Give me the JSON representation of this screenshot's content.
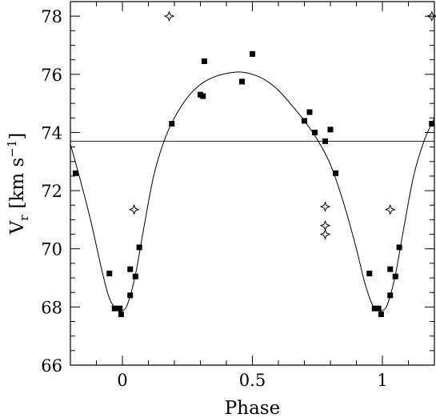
{
  "chart_data": {
    "type": "scatter",
    "xlabel": "Phase",
    "ylabel": {
      "base": "V",
      "sub": "r",
      "unit": "[km s",
      "sup": "−1",
      "close": "]"
    },
    "xlim": [
      -0.2,
      1.2
    ],
    "ylim": [
      66,
      78.5
    ],
    "xticks": [
      0,
      0.5,
      1
    ],
    "xtick_labels": [
      "0",
      "0.5",
      "1"
    ],
    "yticks": [
      66,
      68,
      70,
      72,
      74,
      76,
      78
    ],
    "ytick_labels": [
      "66",
      "68",
      "70",
      "72",
      "74",
      "76",
      "78"
    ],
    "grid": false,
    "reference_line_y": 73.7,
    "series": [
      {
        "marker": "filled-square",
        "points": [
          [
            -0.18,
            72.6
          ],
          [
            -0.05,
            69.15
          ],
          [
            -0.03,
            67.95
          ],
          [
            -0.01,
            67.95
          ],
          [
            -0.005,
            67.75
          ],
          [
            0.03,
            68.4
          ],
          [
            0.03,
            69.3
          ],
          [
            0.05,
            69.05
          ],
          [
            0.065,
            70.05
          ],
          [
            0.19,
            74.3
          ],
          [
            0.3,
            75.3
          ],
          [
            0.31,
            75.25
          ],
          [
            0.315,
            76.45
          ],
          [
            0.46,
            75.75
          ],
          [
            0.5,
            76.7
          ],
          [
            0.7,
            74.4
          ],
          [
            0.72,
            74.7
          ],
          [
            0.74,
            74.0
          ],
          [
            0.78,
            73.7
          ],
          [
            0.8,
            74.1
          ],
          [
            0.82,
            72.6
          ],
          [
            0.95,
            69.15
          ],
          [
            0.97,
            67.95
          ],
          [
            0.985,
            67.95
          ],
          [
            0.995,
            67.75
          ],
          [
            1.03,
            68.4
          ],
          [
            1.03,
            69.3
          ],
          [
            1.05,
            69.05
          ],
          [
            1.065,
            70.05
          ],
          [
            1.19,
            74.3
          ]
        ]
      },
      {
        "marker": "open-star",
        "points": [
          [
            0.18,
            78.0
          ],
          [
            0.045,
            71.35
          ],
          [
            0.78,
            71.45
          ],
          [
            0.78,
            70.8
          ],
          [
            0.78,
            70.5
          ],
          [
            1.03,
            71.35
          ],
          [
            1.19,
            78.0
          ]
        ]
      },
      {
        "marker": "line",
        "points": [
          [
            -0.2,
            73.6
          ],
          [
            -0.16,
            72.3
          ],
          [
            -0.12,
            70.9
          ],
          [
            -0.08,
            69.3
          ],
          [
            -0.05,
            68.3
          ],
          [
            -0.02,
            67.9
          ],
          [
            0.0,
            67.88
          ],
          [
            0.02,
            68.1
          ],
          [
            0.05,
            69.1
          ],
          [
            0.08,
            70.6
          ],
          [
            0.12,
            72.5
          ],
          [
            0.16,
            73.7
          ],
          [
            0.2,
            74.5
          ],
          [
            0.25,
            75.2
          ],
          [
            0.3,
            75.65
          ],
          [
            0.35,
            75.9
          ],
          [
            0.4,
            76.03
          ],
          [
            0.45,
            76.08
          ],
          [
            0.5,
            76.0
          ],
          [
            0.55,
            75.8
          ],
          [
            0.6,
            75.45
          ],
          [
            0.65,
            74.95
          ],
          [
            0.7,
            74.4
          ],
          [
            0.75,
            73.75
          ],
          [
            0.8,
            72.9
          ],
          [
            0.85,
            71.6
          ],
          [
            0.9,
            70.0
          ],
          [
            0.93,
            68.9
          ],
          [
            0.96,
            68.1
          ],
          [
            0.98,
            67.9
          ],
          [
            1.0,
            67.88
          ],
          [
            1.02,
            68.1
          ],
          [
            1.05,
            69.1
          ],
          [
            1.08,
            70.6
          ],
          [
            1.12,
            72.5
          ],
          [
            1.16,
            73.7
          ],
          [
            1.2,
            74.5
          ]
        ]
      }
    ]
  }
}
